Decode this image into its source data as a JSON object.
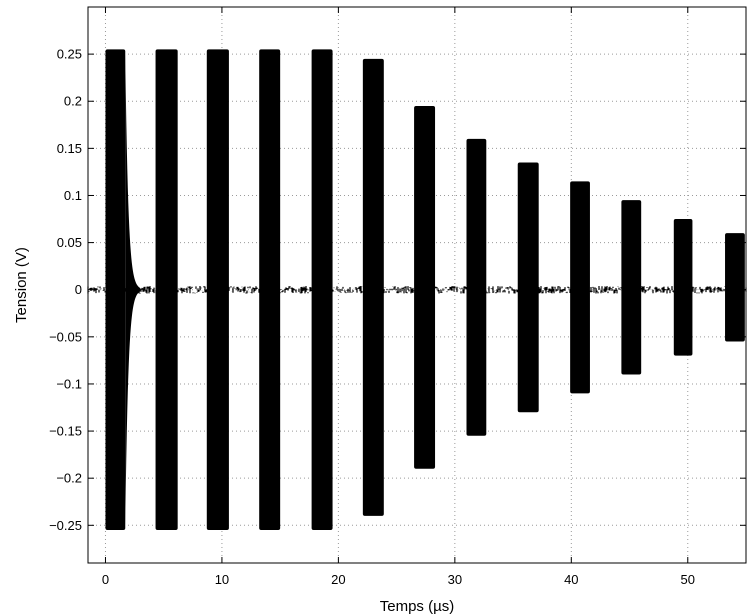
{
  "chart_data": {
    "type": "line",
    "title": "",
    "xlabel": "Temps (µs)",
    "ylabel": "Tension (V)",
    "xlim": [
      -1.5,
      55
    ],
    "ylim": [
      -0.29,
      0.3
    ],
    "xticks": [
      0,
      10,
      20,
      30,
      40,
      50
    ],
    "yticks": [
      0.25,
      0.2,
      0.15,
      0.1,
      0.05,
      0,
      -0.05,
      -0.1,
      -0.15,
      -0.2,
      -0.25
    ],
    "ytick_labels": [
      "0.25",
      "0.2",
      "0.15",
      "0.1",
      "0.05",
      "0",
      "−0.05",
      "−0.1",
      "−0.15",
      "−0.2",
      "−0.25"
    ],
    "grid": true,
    "color": "#000000",
    "baseline_noise_amplitude": 0.004,
    "series": [
      {
        "bursts": [
          {
            "start": 0.0,
            "end": 1.7,
            "max": 0.255,
            "min": -0.255
          },
          {
            "start": 4.3,
            "end": 6.2,
            "max": 0.255,
            "min": -0.255
          },
          {
            "start": 8.7,
            "end": 10.6,
            "max": 0.255,
            "min": -0.255
          },
          {
            "start": 13.2,
            "end": 15.0,
            "max": 0.255,
            "min": -0.255
          },
          {
            "start": 17.7,
            "end": 19.5,
            "max": 0.255,
            "min": -0.255
          },
          {
            "start": 22.1,
            "end": 23.9,
            "max": 0.245,
            "min": -0.24
          },
          {
            "start": 26.5,
            "end": 28.3,
            "max": 0.195,
            "min": -0.19
          },
          {
            "start": 31.0,
            "end": 32.7,
            "max": 0.16,
            "min": -0.155
          },
          {
            "start": 35.4,
            "end": 37.2,
            "max": 0.135,
            "min": -0.13
          },
          {
            "start": 39.9,
            "end": 41.6,
            "max": 0.115,
            "min": -0.11
          },
          {
            "start": 44.3,
            "end": 46.0,
            "max": 0.095,
            "min": -0.09
          },
          {
            "start": 48.8,
            "end": 50.4,
            "max": 0.075,
            "min": -0.07
          },
          {
            "start": 53.2,
            "end": 54.9,
            "max": 0.06,
            "min": -0.055
          }
        ],
        "ringdown_after_first_burst": {
          "start": 1.7,
          "end": 3.0,
          "amplitude": 0.25
        }
      }
    ]
  }
}
